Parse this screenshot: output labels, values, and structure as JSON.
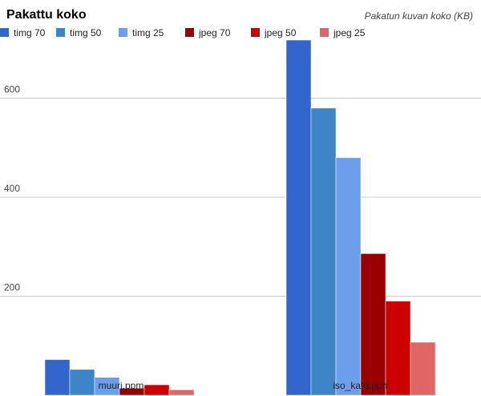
{
  "chart_data": {
    "type": "bar",
    "title": "Pakattu koko",
    "ylabel": "Pakatun kuvan koko (KB)",
    "xlabel": "",
    "categories": [
      "muuri.ppm",
      "iso_katu.ppm"
    ],
    "series": [
      {
        "name": "timg 70",
        "color": "#3366cc",
        "values": [
          72,
          720
        ]
      },
      {
        "name": "timg 50",
        "color": "#3d85c6",
        "values": [
          52,
          580
        ]
      },
      {
        "name": "timg 25",
        "color": "#6d9eeb",
        "values": [
          36,
          480
        ]
      },
      {
        "name": "jpeg 70",
        "color": "#990000",
        "values": [
          14,
          286
        ]
      },
      {
        "name": "jpeg 50",
        "color": "#cc0000",
        "values": [
          21,
          190
        ]
      },
      {
        "name": "jpeg 25",
        "color": "#e06666",
        "values": [
          11,
          107
        ]
      }
    ],
    "ylim": [
      0,
      710
    ],
    "yticks": [
      200,
      400,
      600
    ],
    "grid": true,
    "legend_position": "top"
  }
}
